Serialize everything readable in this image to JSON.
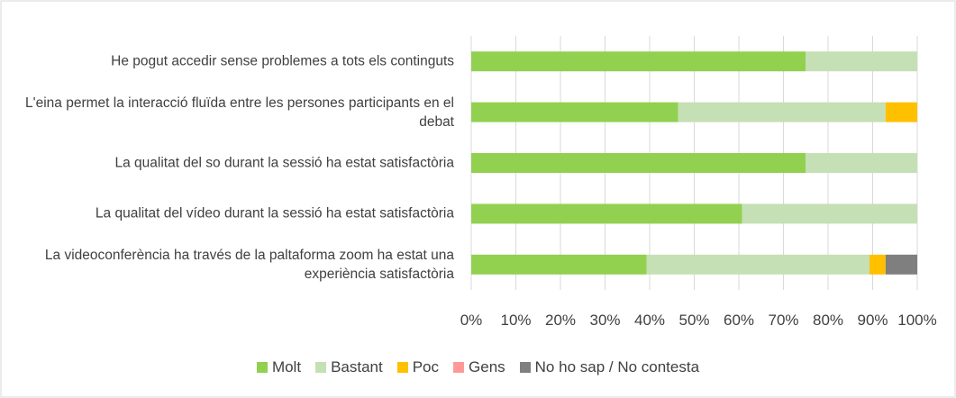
{
  "chart_data": {
    "type": "stacked-bar-horizontal",
    "categories": [
      "He pogut accedir sense problemes a tots els continguts",
      "L'eina permet la interacció fluïda entre les persones participants en el debat",
      "La qualitat del so durant la sessió ha estat satisfactòria",
      "La qualitat del vídeo durant la sessió ha estat satisfactòria",
      "La videoconferència ha través de la paltaforma zoom ha estat una experiència satisfactòria"
    ],
    "series": [
      {
        "name": "Molt",
        "color": "#92d050",
        "values": [
          75,
          46.4,
          75,
          60.7,
          39.3
        ]
      },
      {
        "name": "Bastant",
        "color": "#c5e0b4",
        "values": [
          25,
          46.5,
          25,
          39.3,
          50
        ]
      },
      {
        "name": "Poc",
        "color": "#ffc000",
        "values": [
          0,
          7.1,
          0,
          0,
          3.6
        ]
      },
      {
        "name": "Gens",
        "color": "#ff9999",
        "values": [
          0,
          0,
          0,
          0,
          0
        ]
      },
      {
        "name": "No ho sap / No contesta",
        "color": "#7f7f7f",
        "values": [
          0,
          0,
          0,
          0,
          7.1
        ]
      }
    ],
    "xlim": [
      0,
      100
    ],
    "xticks": [
      {
        "value": 0,
        "label": "0%"
      },
      {
        "value": 10,
        "label": "10%"
      },
      {
        "value": 20,
        "label": "20%"
      },
      {
        "value": 30,
        "label": "30%"
      },
      {
        "value": 40,
        "label": "40%"
      },
      {
        "value": 50,
        "label": "50%"
      },
      {
        "value": 60,
        "label": "60%"
      },
      {
        "value": 70,
        "label": "70%"
      },
      {
        "value": 80,
        "label": "80%"
      },
      {
        "value": 90,
        "label": "90%"
      },
      {
        "value": 100,
        "label": "100%"
      }
    ],
    "grid": true,
    "legend": "bottom"
  }
}
